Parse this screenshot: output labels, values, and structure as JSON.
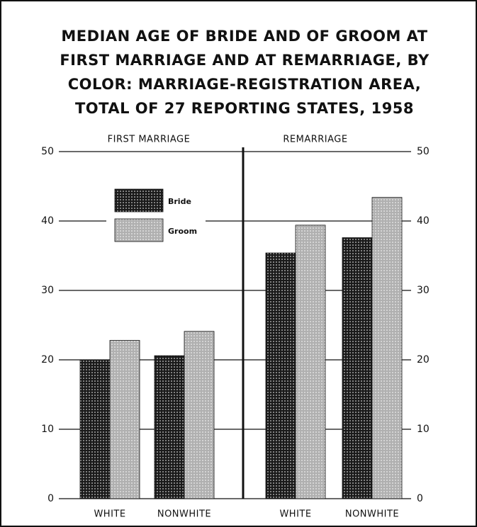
{
  "chart_data": {
    "type": "bar",
    "title": [
      "MEDIAN AGE OF BRIDE AND OF GROOM AT",
      "FIRST MARRIAGE AND AT REMARRIAGE, BY",
      "COLOR:    MARRIAGE-REGISTRATION AREA,",
      "TOTAL OF 27 REPORTING STATES, 1958"
    ],
    "sections": [
      "FIRST MARRIAGE",
      "REMARRIAGE"
    ],
    "categories": [
      "WHITE",
      "NONWHITE",
      "WHITE",
      "NONWHITE"
    ],
    "series": [
      {
        "name": "Bride",
        "color": "#1a1a1a",
        "values": [
          20.0,
          20.6,
          35.4,
          37.6
        ]
      },
      {
        "name": "Groom",
        "color": "#b0b0b0",
        "values": [
          22.8,
          24.1,
          39.4,
          43.4
        ]
      }
    ],
    "ylim": [
      0,
      50
    ],
    "yticks": [
      0,
      10,
      20,
      30,
      40,
      50
    ],
    "grid": true
  }
}
